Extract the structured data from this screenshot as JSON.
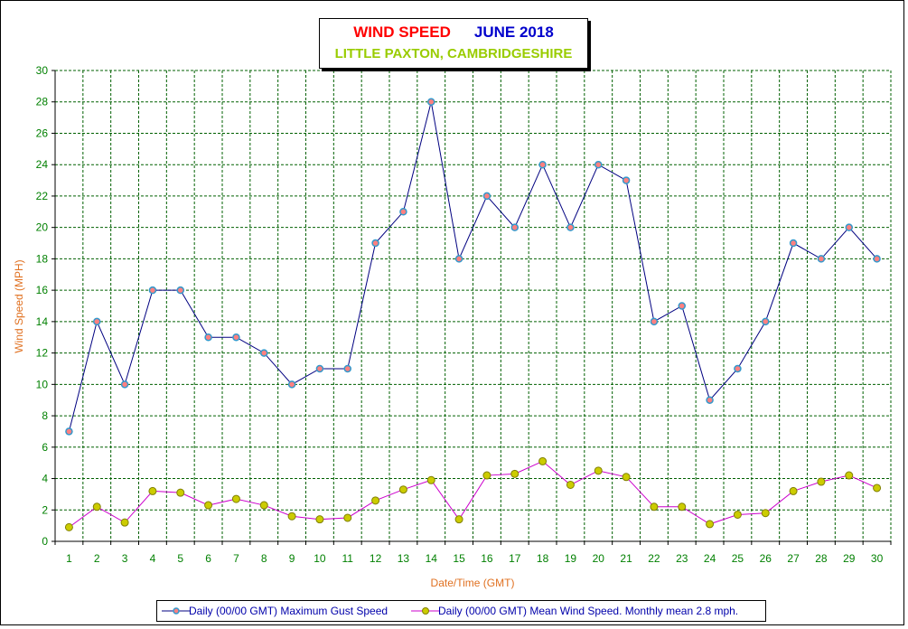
{
  "title": {
    "part1": "WIND SPEED",
    "part2": "JUNE 2018",
    "subtitle": "LITTLE PAXTON, CAMBRIDGESHIRE"
  },
  "colors": {
    "title_red": "#ff0000",
    "title_blue": "#0000cc",
    "subtitle_green": "#99cc00",
    "axis_label": "#e07020",
    "tick_label": "#008000",
    "grid": "#006000",
    "gust_line": "#000080",
    "gust_marker_fill": "#ff8080",
    "gust_marker_stroke": "#3399cc",
    "mean_line": "#cc00cc",
    "mean_marker_fill": "#cccc00",
    "mean_marker_stroke": "#808000"
  },
  "legend": {
    "gust": "Daily (00/00 GMT) Maximum Gust Speed",
    "mean": "Daily (00/00 GMT) Mean Wind Speed. Monthly mean 2.8 mph."
  },
  "chart_data": {
    "type": "line",
    "title": "WIND SPEED    JUNE 2018",
    "subtitle": "LITTLE PAXTON, CAMBRIDGESHIRE",
    "xlabel": "Date/Time (GMT)",
    "ylabel": "Wind Speed (MPH)",
    "ylim": [
      0,
      30
    ],
    "ytick_step": 2,
    "grid": true,
    "legend_position": "bottom",
    "categories": [
      "1",
      "2",
      "3",
      "4",
      "5",
      "6",
      "7",
      "8",
      "9",
      "10",
      "11",
      "12",
      "13",
      "14",
      "15",
      "16",
      "17",
      "18",
      "19",
      "20",
      "21",
      "22",
      "23",
      "24",
      "25",
      "26",
      "27",
      "28",
      "29",
      "30"
    ],
    "series": [
      {
        "name": "Daily (00/00 GMT) Maximum Gust Speed",
        "values": [
          7,
          14,
          10,
          16,
          16,
          13,
          13,
          12,
          10,
          11,
          11,
          19,
          21,
          28,
          18,
          22,
          20,
          24,
          20,
          24,
          23,
          14,
          15,
          9,
          11,
          14,
          19,
          18,
          20,
          18
        ]
      },
      {
        "name": "Daily (00/00 GMT) Mean Wind Speed. Monthly mean 2.8 mph.",
        "values": [
          0.9,
          2.2,
          1.2,
          3.2,
          3.1,
          2.3,
          2.7,
          2.3,
          1.6,
          1.4,
          1.5,
          2.6,
          3.3,
          3.9,
          1.4,
          4.2,
          4.3,
          5.1,
          3.6,
          4.5,
          4.1,
          2.2,
          2.2,
          1.1,
          1.7,
          1.8,
          3.2,
          3.8,
          4.2,
          3.4
        ]
      }
    ]
  }
}
